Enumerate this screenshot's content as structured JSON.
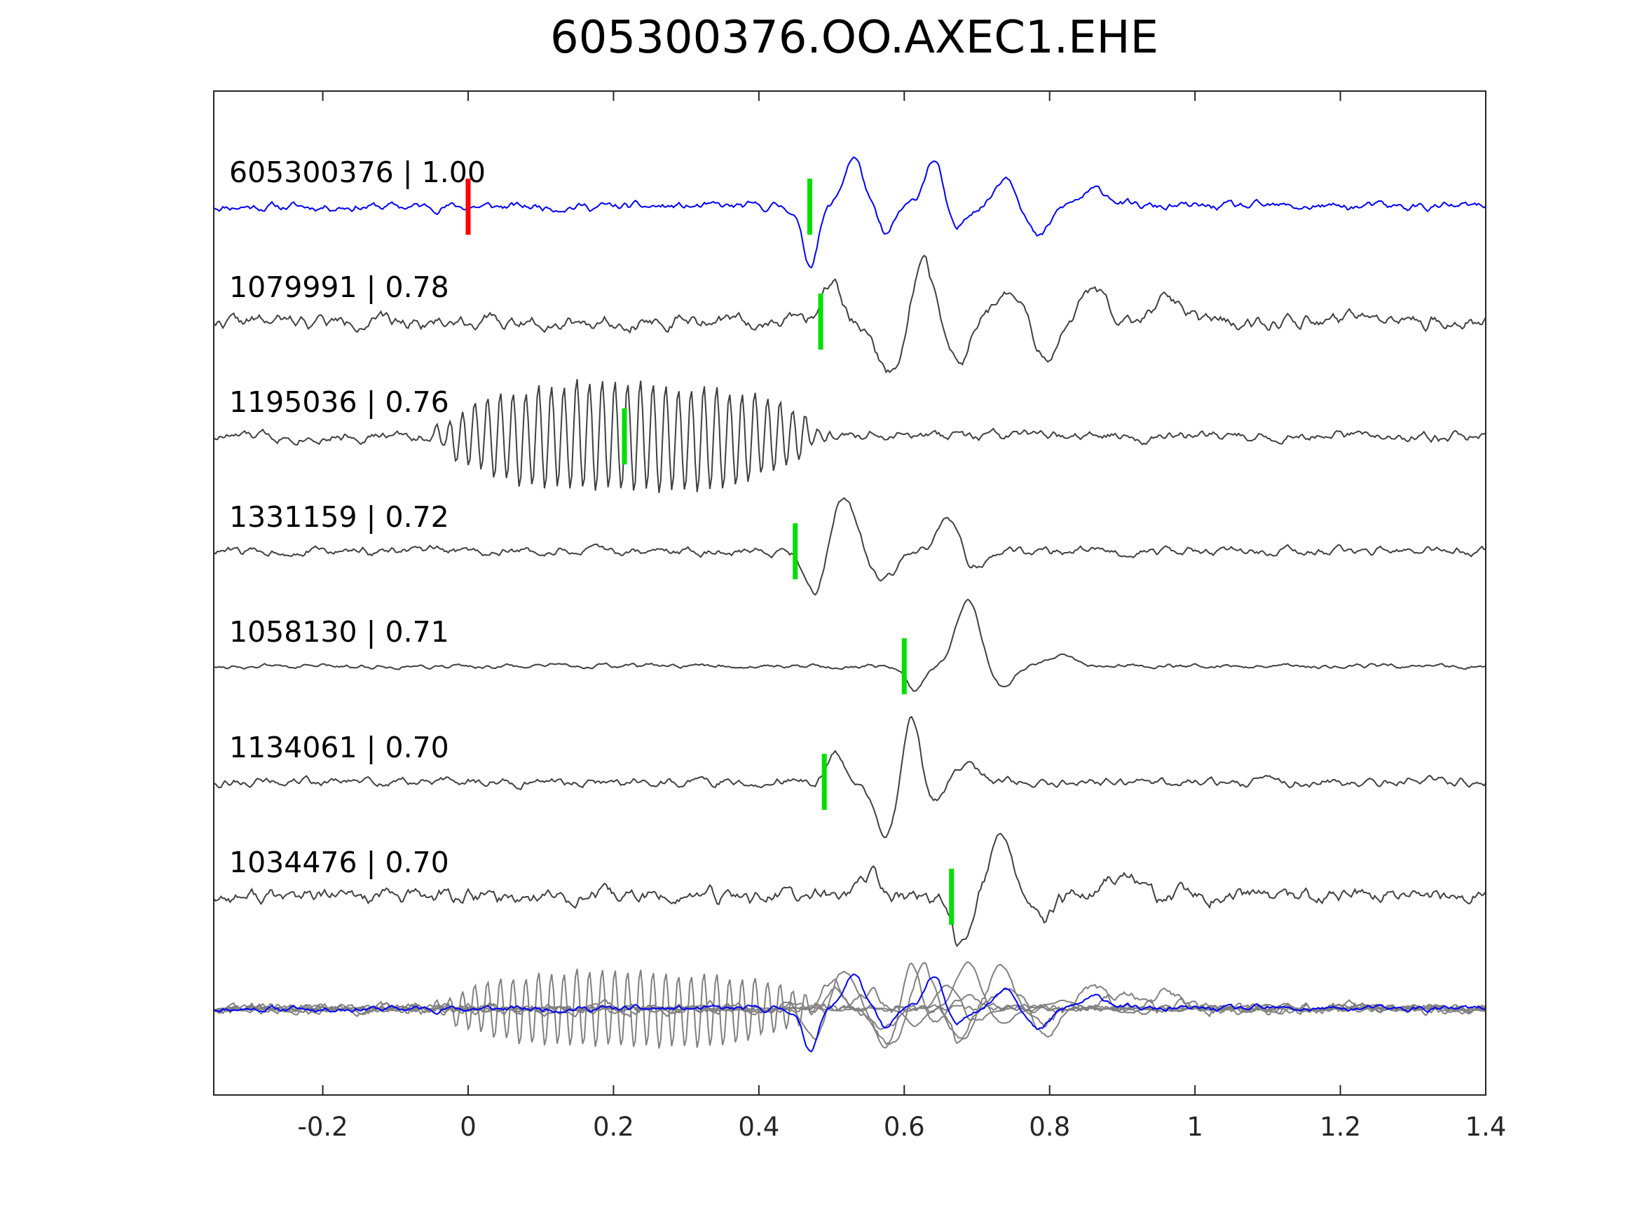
{
  "chart_data": {
    "type": "line",
    "title": "605300376.OO.AXEC1.EHE",
    "xlabel": "",
    "ylabel": "",
    "xlim": [
      -0.35,
      1.4
    ],
    "x_ticks": [
      -0.2,
      0,
      0.2,
      0.4,
      0.6,
      0.8,
      1,
      1.2,
      1.4
    ],
    "x_tick_labels": [
      "-0.2",
      "0",
      "0.2",
      "0.4",
      "0.6",
      "0.8",
      "1",
      "1.2",
      "1.4"
    ],
    "grid": false,
    "colors": {
      "reference": "#0000ff",
      "matches": "#404040",
      "stack": "#808080",
      "reference_pick": "#ff0000",
      "pick": "#00e000"
    },
    "series": [
      {
        "id": "605300376",
        "label": "605300376 | 1.00",
        "correlation": 1.0,
        "pick": 0.0,
        "phase_pick": 0.47,
        "role": "reference",
        "seed": 11,
        "noise": 0.1,
        "events": [
          {
            "t": 0.47,
            "a": -1.1,
            "w": 0.015
          },
          {
            "t": 0.53,
            "a": 0.95,
            "w": 0.018
          },
          {
            "t": 0.575,
            "a": -0.55,
            "w": 0.015
          },
          {
            "t": 0.64,
            "a": 0.9,
            "w": 0.018
          },
          {
            "t": 0.67,
            "a": -0.5,
            "w": 0.015
          },
          {
            "t": 0.74,
            "a": 0.6,
            "w": 0.02
          },
          {
            "t": 0.785,
            "a": -0.6,
            "w": 0.02
          },
          {
            "t": 0.865,
            "a": 0.3,
            "w": 0.03
          }
        ]
      },
      {
        "id": "1079991",
        "label": "1079991 | 0.78",
        "correlation": 0.78,
        "pick": 0.485,
        "seed": 22,
        "noise": 0.16,
        "events": [
          {
            "t": 0.5,
            "a": 0.7,
            "w": 0.02
          },
          {
            "t": 0.58,
            "a": -0.95,
            "w": 0.025
          },
          {
            "t": 0.625,
            "a": 1.2,
            "w": 0.02
          },
          {
            "t": 0.675,
            "a": -0.8,
            "w": 0.02
          },
          {
            "t": 0.745,
            "a": 0.5,
            "w": 0.03
          },
          {
            "t": 0.795,
            "a": -0.7,
            "w": 0.025
          },
          {
            "t": 0.86,
            "a": 0.6,
            "w": 0.025
          },
          {
            "t": 0.96,
            "a": 0.4,
            "w": 0.03
          }
        ]
      },
      {
        "id": "1195036",
        "label": "1195036 | 0.76",
        "correlation": 0.76,
        "pick": 0.215,
        "seed": 33,
        "noise": 0.12,
        "burst": {
          "start": -0.03,
          "end": 0.47,
          "period": 0.0175,
          "amp": 1.05
        },
        "events": []
      },
      {
        "id": "1331159",
        "label": "1331159 | 0.72",
        "correlation": 0.72,
        "pick": 0.45,
        "seed": 44,
        "noise": 0.1,
        "events": [
          {
            "t": 0.48,
            "a": -0.9,
            "w": 0.02
          },
          {
            "t": 0.515,
            "a": 1.1,
            "w": 0.025
          },
          {
            "t": 0.57,
            "a": -0.6,
            "w": 0.025
          },
          {
            "t": 0.66,
            "a": 0.55,
            "w": 0.02
          },
          {
            "t": 0.695,
            "a": -0.3,
            "w": 0.02
          }
        ]
      },
      {
        "id": "1058130",
        "label": "1058130 | 0.71",
        "correlation": 0.71,
        "pick": 0.6,
        "seed": 55,
        "noise": 0.05,
        "events": [
          {
            "t": 0.615,
            "a": -0.5,
            "w": 0.015
          },
          {
            "t": 0.688,
            "a": 1.3,
            "w": 0.022
          },
          {
            "t": 0.735,
            "a": -0.4,
            "w": 0.02
          },
          {
            "t": 0.815,
            "a": 0.25,
            "w": 0.025
          }
        ]
      },
      {
        "id": "1134061",
        "label": "1134061 | 0.70",
        "correlation": 0.7,
        "pick": 0.49,
        "seed": 66,
        "noise": 0.1,
        "events": [
          {
            "t": 0.505,
            "a": 0.5,
            "w": 0.015
          },
          {
            "t": 0.575,
            "a": -1.0,
            "w": 0.02
          },
          {
            "t": 0.61,
            "a": 1.3,
            "w": 0.015
          },
          {
            "t": 0.64,
            "a": -0.4,
            "w": 0.015
          },
          {
            "t": 0.69,
            "a": 0.3,
            "w": 0.02
          }
        ]
      },
      {
        "id": "1034476",
        "label": "1034476 | 0.70",
        "correlation": 0.7,
        "pick": 0.665,
        "seed": 77,
        "noise": 0.18,
        "events": [
          {
            "t": 0.55,
            "a": 0.45,
            "w": 0.02
          },
          {
            "t": 0.675,
            "a": -0.9,
            "w": 0.018
          },
          {
            "t": 0.735,
            "a": 1.1,
            "w": 0.022
          },
          {
            "t": 0.79,
            "a": -0.5,
            "w": 0.02
          },
          {
            "t": 0.9,
            "a": 0.4,
            "w": 0.03
          }
        ]
      }
    ]
  }
}
